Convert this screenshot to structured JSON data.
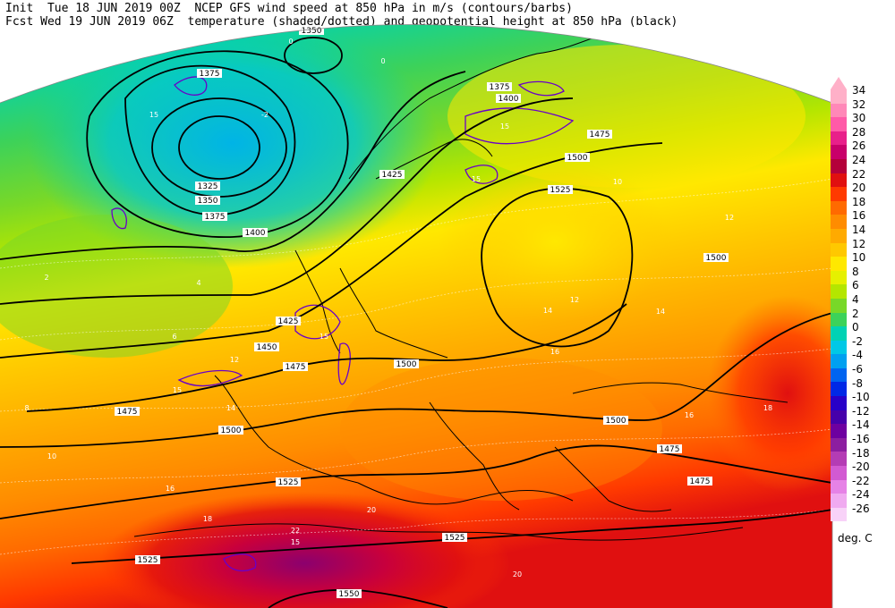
{
  "header": {
    "line1": "Init  Tue 18 JUN 2019 00Z  NCEP GFS wind speed at 850 hPa in m/s (contours/barbs)",
    "line2": "Fcst Wed 19 JUN 2019 06Z  temperature (shaded/dotted) and geopotential height at 850 hPa (black)"
  },
  "legend": {
    "unit": "deg. C",
    "entries": [
      {
        "label": "34",
        "color": "#ffb0c8"
      },
      {
        "label": "32",
        "color": "#ff88b8"
      },
      {
        "label": "30",
        "color": "#ff5aa8"
      },
      {
        "label": "28",
        "color": "#e8208a"
      },
      {
        "label": "26",
        "color": "#c8006a"
      },
      {
        "label": "24",
        "color": "#b4003a"
      },
      {
        "label": "22",
        "color": "#e01010"
      },
      {
        "label": "20",
        "color": "#ff3a00"
      },
      {
        "label": "18",
        "color": "#ff6a00"
      },
      {
        "label": "16",
        "color": "#ff8c00"
      },
      {
        "label": "14",
        "color": "#ffaa00"
      },
      {
        "label": "12",
        "color": "#ffc800"
      },
      {
        "label": "10",
        "color": "#ffe800"
      },
      {
        "label": "8",
        "color": "#e6f000"
      },
      {
        "label": "6",
        "color": "#b4e600"
      },
      {
        "label": "4",
        "color": "#78d828"
      },
      {
        "label": "2",
        "color": "#3cd25a"
      },
      {
        "label": "0",
        "color": "#00d2b4"
      },
      {
        "label": "-2",
        "color": "#00c8e6"
      },
      {
        "label": "-4",
        "color": "#00a0f0"
      },
      {
        "label": "-6",
        "color": "#0064f0"
      },
      {
        "label": "-8",
        "color": "#0028e6"
      },
      {
        "label": "-10",
        "color": "#2800c8"
      },
      {
        "label": "-12",
        "color": "#4600aa"
      },
      {
        "label": "-14",
        "color": "#6e00a0"
      },
      {
        "label": "-16",
        "color": "#8c1ea0"
      },
      {
        "label": "-18",
        "color": "#b43cb4"
      },
      {
        "label": "-20",
        "color": "#d25ad2"
      },
      {
        "label": "-22",
        "color": "#e682e6"
      },
      {
        "label": "-24",
        "color": "#f0aaf0"
      },
      {
        "label": "-26",
        "color": "#f8d2f8"
      }
    ]
  },
  "height_labels": [
    "1350",
    "1375",
    "1325",
    "1350",
    "1375",
    "1400",
    "1375",
    "1400",
    "1425",
    "1475",
    "1500",
    "1525",
    "1500",
    "1425",
    "1450",
    "1475",
    "1500",
    "1475",
    "1500",
    "1525",
    "1500",
    "1475",
    "1475",
    "1525",
    "1525",
    "1550"
  ],
  "temp_labels": [
    "0",
    "-2",
    "0",
    "2",
    "4",
    "6",
    "8",
    "10",
    "12",
    "14",
    "16",
    "18",
    "20",
    "22",
    "10",
    "12",
    "14",
    "16",
    "12",
    "14",
    "16",
    "18",
    "20"
  ],
  "wind_labels": [
    "15",
    "15",
    "15",
    "15",
    "15",
    "15"
  ]
}
